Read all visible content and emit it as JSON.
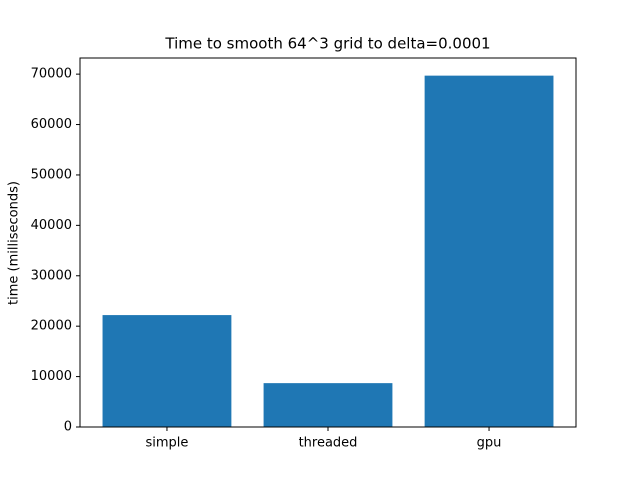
{
  "chart_data": {
    "type": "bar",
    "title": "Time to smooth 64^3 grid to delta=0.0001",
    "y_label": "time (milliseconds)",
    "categories": [
      "simple",
      "threaded",
      "gpu"
    ],
    "values": [
      22200,
      8700,
      69700
    ],
    "color": "#1f77b4",
    "ylim": [
      0,
      73200
    ],
    "yticks": [
      0,
      10000,
      20000,
      30000,
      40000,
      50000,
      60000,
      70000
    ],
    "grid": false
  }
}
